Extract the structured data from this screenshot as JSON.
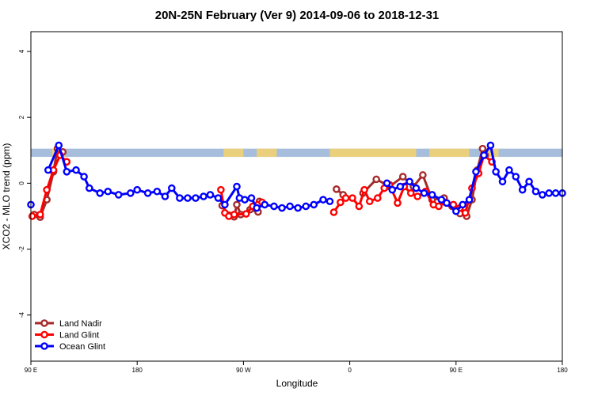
{
  "chart_data": {
    "type": "line",
    "title": "20N-25N February (Ver 9)   2014-09-06 to 2018-12-31",
    "xlabel": "Longitude",
    "ylabel": "XCO2 - MLO trend (ppm)",
    "xlim": [
      0,
      400
    ],
    "ylim": [
      -5.4,
      4.6
    ],
    "x_ticks": [
      {
        "value": 0,
        "label": "90 E"
      },
      {
        "value": 80,
        "label": "180"
      },
      {
        "value": 160,
        "label": "90 W"
      },
      {
        "value": 240,
        "label": "0"
      },
      {
        "value": 320,
        "label": "90 E"
      },
      {
        "value": 400,
        "label": "180"
      }
    ],
    "y_ticks": [
      {
        "value": -4,
        "label": "-4"
      },
      {
        "value": -2,
        "label": "-2"
      },
      {
        "value": 0,
        "label": "0"
      },
      {
        "value": 2,
        "label": "2"
      },
      {
        "value": 4,
        "label": "4"
      }
    ],
    "land_band": {
      "y": [
        0.8,
        1.05
      ],
      "ocean_color": "#a6bddb",
      "land_color": "#f6d36b"
    },
    "legend_position": "bottom-left",
    "series": [
      {
        "name": "Land Nadir",
        "color": "#a52a2a",
        "points": [
          [
            2.5,
            -0.95
          ],
          [
            7,
            -1.03
          ],
          [
            12,
            -0.5
          ],
          [
            17,
            0.35
          ],
          [
            20,
            1.05
          ],
          [
            24,
            0.95
          ],
          [
            144,
            -0.68
          ],
          [
            149,
            -0.97
          ],
          [
            153,
            -1.02
          ],
          [
            155,
            -0.65
          ],
          [
            158,
            -0.95
          ],
          [
            165,
            -0.8
          ],
          [
            171,
            -0.87
          ],
          [
            172,
            -0.55
          ],
          [
            230,
            -0.18
          ],
          [
            235,
            -0.35
          ],
          [
            250,
            -0.3
          ],
          [
            260,
            0.12
          ],
          [
            270,
            -0.1
          ],
          [
            280,
            0.2
          ],
          [
            288,
            -0.1
          ],
          [
            295,
            0.25
          ],
          [
            302,
            -0.5
          ],
          [
            311,
            -0.45
          ],
          [
            317,
            -0.7
          ],
          [
            323,
            -0.92
          ],
          [
            328,
            -1.0
          ],
          [
            332,
            -0.5
          ],
          [
            336,
            0.4
          ],
          [
            340,
            1.05
          ],
          [
            342,
            0.85
          ]
        ]
      },
      {
        "name": "Land Glint",
        "color": "#ff0000",
        "points": [
          [
            1,
            -1.0
          ],
          [
            7,
            -0.95
          ],
          [
            12,
            -0.2
          ],
          [
            17,
            0.4
          ],
          [
            22,
            0.85
          ],
          [
            27,
            0.65
          ],
          [
            143,
            -0.2
          ],
          [
            146,
            -0.9
          ],
          [
            149,
            -1.0
          ],
          [
            153,
            -0.95
          ],
          [
            162,
            -0.93
          ],
          [
            167,
            -0.7
          ],
          [
            171,
            -0.65
          ],
          [
            174,
            -0.58
          ],
          [
            228,
            -0.88
          ],
          [
            233,
            -0.58
          ],
          [
            237,
            -0.45
          ],
          [
            242,
            -0.45
          ],
          [
            247,
            -0.7
          ],
          [
            251,
            -0.2
          ],
          [
            255,
            -0.55
          ],
          [
            261,
            -0.45
          ],
          [
            266,
            -0.15
          ],
          [
            270,
            -0.05
          ],
          [
            276,
            -0.6
          ],
          [
            281,
            -0.1
          ],
          [
            286,
            -0.3
          ],
          [
            291,
            -0.4
          ],
          [
            297,
            -0.25
          ],
          [
            303,
            -0.65
          ],
          [
            307,
            -0.7
          ],
          [
            312,
            -0.58
          ],
          [
            318,
            -0.65
          ],
          [
            323,
            -0.75
          ],
          [
            327,
            -0.9
          ],
          [
            332,
            -0.15
          ],
          [
            337,
            0.3
          ],
          [
            341,
            0.85
          ],
          [
            347,
            0.65
          ]
        ]
      },
      {
        "name": "Ocean Glint",
        "color": "#0000ff",
        "points": [
          [
            0,
            -0.65
          ],
          [
            13,
            0.4
          ],
          [
            21,
            1.15
          ],
          [
            27,
            0.35
          ],
          [
            34,
            0.4
          ],
          [
            40,
            0.2
          ],
          [
            44,
            -0.15
          ],
          [
            52,
            -0.3
          ],
          [
            58,
            -0.25
          ],
          [
            66,
            -0.35
          ],
          [
            75,
            -0.3
          ],
          [
            80,
            -0.2
          ],
          [
            88,
            -0.3
          ],
          [
            95,
            -0.25
          ],
          [
            101,
            -0.4
          ],
          [
            106,
            -0.15
          ],
          [
            112,
            -0.45
          ],
          [
            118,
            -0.45
          ],
          [
            124,
            -0.45
          ],
          [
            130,
            -0.4
          ],
          [
            135,
            -0.35
          ],
          [
            141,
            -0.45
          ],
          [
            146,
            -0.65
          ],
          [
            155,
            -0.1
          ],
          [
            157,
            -0.45
          ],
          [
            161,
            -0.5
          ],
          [
            166,
            -0.45
          ],
          [
            170,
            -0.75
          ],
          [
            176,
            -0.65
          ],
          [
            183,
            -0.7
          ],
          [
            189,
            -0.75
          ],
          [
            195,
            -0.7
          ],
          [
            201,
            -0.75
          ],
          [
            207,
            -0.7
          ],
          [
            213,
            -0.65
          ],
          [
            220,
            -0.5
          ],
          [
            225,
            -0.55
          ],
          [
            268,
            0.0
          ],
          [
            272,
            -0.2
          ],
          [
            278,
            -0.1
          ],
          [
            285,
            0.05
          ],
          [
            290,
            -0.15
          ],
          [
            296,
            -0.3
          ],
          [
            302,
            -0.35
          ],
          [
            309,
            -0.5
          ],
          [
            313,
            -0.6
          ],
          [
            320,
            -0.85
          ],
          [
            325,
            -0.65
          ],
          [
            330,
            -0.5
          ],
          [
            335,
            0.35
          ],
          [
            341,
            0.85
          ],
          [
            346,
            1.15
          ],
          [
            350,
            0.35
          ],
          [
            355,
            0.05
          ],
          [
            360,
            0.4
          ],
          [
            365,
            0.2
          ],
          [
            370,
            -0.2
          ],
          [
            375,
            0.05
          ],
          [
            380,
            -0.25
          ],
          [
            385,
            -0.35
          ],
          [
            390,
            -0.3
          ],
          [
            395,
            -0.3
          ],
          [
            400,
            -0.3
          ]
        ]
      }
    ]
  }
}
